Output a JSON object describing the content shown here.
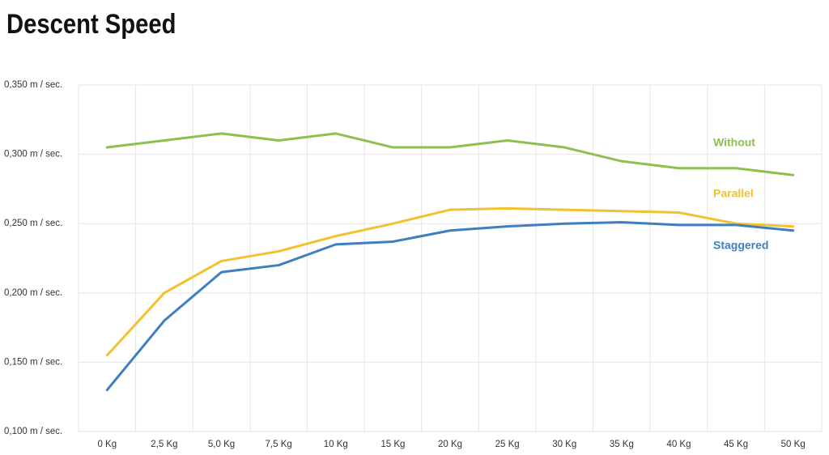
{
  "chart_data": {
    "type": "line",
    "title": "Descent Speed",
    "categories": [
      "0 Kg",
      "2,5 Kg",
      "5,0 Kg",
      "7,5 Kg",
      "10 Kg",
      "15 Kg",
      "20 Kg",
      "25 Kg",
      "30 Kg",
      "35 Kg",
      "40 Kg",
      "45 Kg",
      "50 Kg"
    ],
    "series": [
      {
        "name": "Without",
        "color": "#8cc04f",
        "values": [
          0.305,
          0.31,
          0.315,
          0.31,
          0.315,
          0.305,
          0.305,
          0.31,
          0.305,
          0.295,
          0.29,
          0.29,
          0.285
        ]
      },
      {
        "name": "Parallel",
        "color": "#f2c12e",
        "values": [
          0.155,
          0.2,
          0.223,
          0.23,
          0.241,
          0.25,
          0.26,
          0.261,
          0.26,
          0.259,
          0.258,
          0.25,
          0.248
        ]
      },
      {
        "name": "Staggered",
        "color": "#3f7fbf",
        "values": [
          0.13,
          0.18,
          0.215,
          0.22,
          0.235,
          0.237,
          0.245,
          0.248,
          0.25,
          0.251,
          0.249,
          0.249,
          0.245
        ]
      }
    ],
    "ylim": [
      0.1,
      0.35
    ],
    "yticks": [
      {
        "value": 0.35,
        "label": "0,350 m / sec."
      },
      {
        "value": 0.3,
        "label": "0,300 m / sec."
      },
      {
        "value": 0.25,
        "label": "0,250 m / sec."
      },
      {
        "value": 0.2,
        "label": "0,200 m / sec."
      },
      {
        "value": 0.15,
        "label": "0,150 m / sec."
      },
      {
        "value": 0.1,
        "label": "0,100 m / sec."
      }
    ],
    "grid": true
  }
}
